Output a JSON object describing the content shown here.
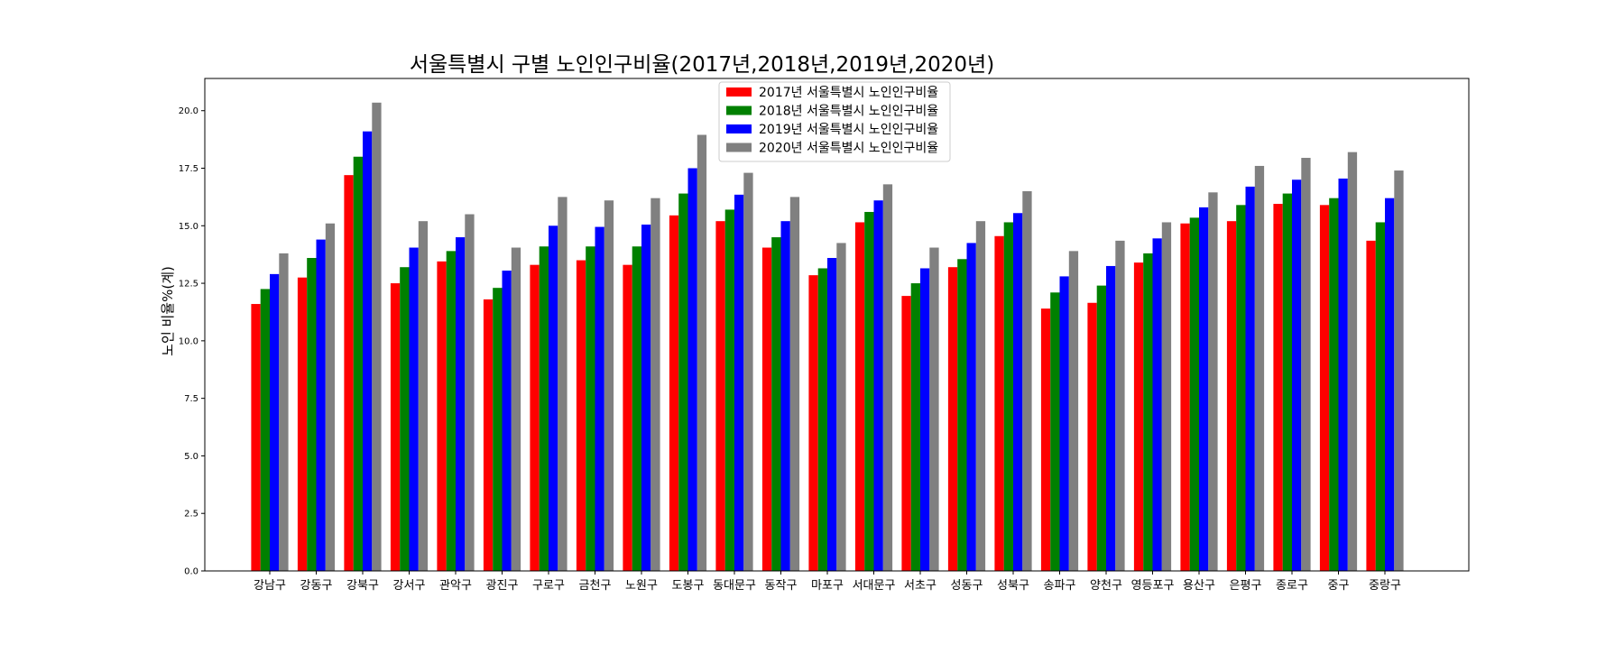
{
  "chart_data": {
    "type": "bar",
    "title": "서울특별시 구별 노인인구비율(2017년,2018년,2019년,2020년)",
    "xlabel": "",
    "ylabel": "노인 비율%(계)",
    "ylim": [
      0,
      21.4
    ],
    "yticks": [
      0.0,
      2.5,
      5.0,
      7.5,
      10.0,
      12.5,
      15.0,
      17.5,
      20.0
    ],
    "ytick_labels": [
      "0.0",
      "2.5",
      "5.0",
      "7.5",
      "10.0",
      "12.5",
      "15.0",
      "17.5",
      "20.0"
    ],
    "grid": false,
    "legend_position": "top-center",
    "categories": [
      "강남구",
      "강동구",
      "강북구",
      "강서구",
      "관악구",
      "광진구",
      "구로구",
      "금천구",
      "노원구",
      "도봉구",
      "동대문구",
      "동작구",
      "마포구",
      "서대문구",
      "서초구",
      "성동구",
      "성북구",
      "송파구",
      "양천구",
      "영등포구",
      "용산구",
      "은평구",
      "종로구",
      "중구",
      "중랑구"
    ],
    "series": [
      {
        "name": "2017년 서울특별시 노인인구비율",
        "color": "#ff0000",
        "values": [
          11.6,
          12.75,
          17.2,
          12.5,
          13.45,
          11.8,
          13.3,
          13.5,
          13.3,
          15.45,
          15.2,
          14.05,
          12.85,
          15.15,
          11.95,
          13.2,
          14.55,
          11.4,
          11.65,
          13.4,
          15.1,
          15.2,
          15.95,
          15.9,
          14.35
        ]
      },
      {
        "name": "2018년 서울특별시 노인인구비율",
        "color": "#008000",
        "values": [
          12.25,
          13.6,
          18.0,
          13.2,
          13.9,
          12.3,
          14.1,
          14.1,
          14.1,
          16.4,
          15.7,
          14.5,
          13.15,
          15.6,
          12.5,
          13.55,
          15.15,
          12.1,
          12.4,
          13.8,
          15.35,
          15.9,
          16.4,
          16.2,
          15.15
        ]
      },
      {
        "name": "2019년 서울특별시 노인인구비율",
        "color": "#0000ff",
        "values": [
          12.9,
          14.4,
          19.1,
          14.05,
          14.5,
          13.05,
          15.0,
          14.95,
          15.05,
          17.5,
          16.35,
          15.2,
          13.6,
          16.1,
          13.15,
          14.25,
          15.55,
          12.8,
          13.25,
          14.45,
          15.8,
          16.7,
          17.0,
          17.05,
          16.2
        ]
      },
      {
        "name": "2020년 서울특별시 노인인구비율",
        "color": "#808080",
        "values": [
          13.8,
          15.1,
          20.35,
          15.2,
          15.5,
          14.05,
          16.25,
          16.1,
          16.2,
          18.95,
          17.3,
          16.25,
          14.25,
          16.8,
          14.05,
          15.2,
          16.5,
          13.9,
          14.35,
          15.15,
          16.45,
          17.6,
          17.95,
          18.2,
          17.4
        ]
      }
    ]
  }
}
